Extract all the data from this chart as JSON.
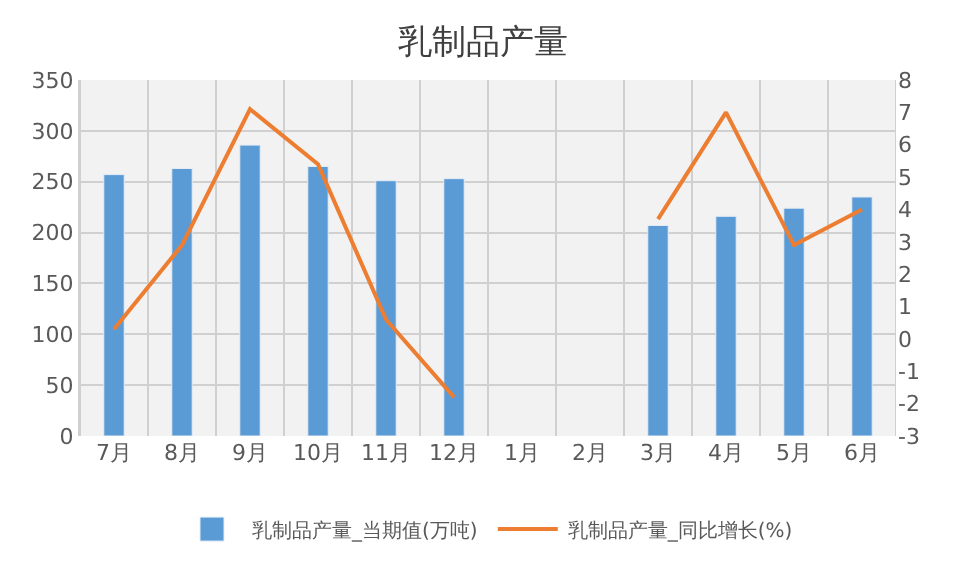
{
  "chart_data": {
    "type": "bar",
    "title": "乳制品产量",
    "categories": [
      "7月",
      "8月",
      "9月",
      "10月",
      "11月",
      "12月",
      "1月",
      "2月",
      "3月",
      "4月",
      "5月",
      "6月"
    ],
    "series": [
      {
        "name": "乳制品产量_当期值(万吨)",
        "color": "#5b9bd5",
        "values": [
          257,
          263,
          286,
          265,
          251,
          253,
          null,
          null,
          207,
          216,
          224,
          235
        ]
      },
      {
        "name": "乳制品产量_同比增长(%)",
        "type": "line",
        "axis": "y2",
        "color": "#ed7d31",
        "values": [
          0.3,
          2.9,
          7.1,
          5.4,
          0.6,
          -1.8,
          null,
          null,
          3.7,
          7.0,
          2.9,
          4.0
        ]
      }
    ],
    "ylim": [
      0,
      350
    ],
    "yticks": [
      0,
      50,
      100,
      150,
      200,
      250,
      300,
      350
    ],
    "y2lim": [
      -3,
      8
    ],
    "y2ticks": [
      -3,
      -2,
      -1,
      0,
      1,
      2,
      3,
      4,
      5,
      6,
      7,
      8
    ],
    "grid": true,
    "legend": "bottom",
    "marker": "none"
  }
}
